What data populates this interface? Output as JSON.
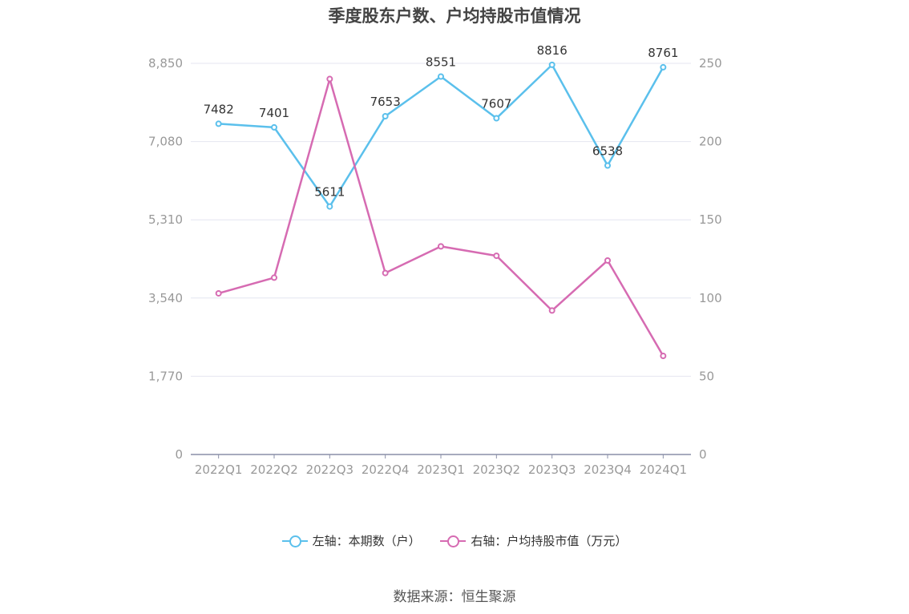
{
  "title": "季度股东户数、户均持股市值情况",
  "source": "数据来源：恒生聚源",
  "colors": {
    "left_series": "#5bc0ec",
    "right_series": "#d66bb2",
    "grid": "#e4e6f0",
    "axis_label": "#999999"
  },
  "legend": [
    {
      "label": "左轴：本期数（户）",
      "color": "#5bc0ec"
    },
    {
      "label": "右轴：户均持股市值（万元）",
      "color": "#d66bb2"
    }
  ],
  "chart_data": {
    "type": "line",
    "categories": [
      "2022Q1",
      "2022Q2",
      "2022Q3",
      "2022Q4",
      "2023Q1",
      "2023Q2",
      "2023Q3",
      "2023Q4",
      "2024Q1"
    ],
    "left_axis": {
      "ticks": [
        "0",
        "1,770",
        "3,540",
        "5,310",
        "7,080",
        "8,850"
      ],
      "ylim": [
        0,
        8850
      ]
    },
    "right_axis": {
      "ticks": [
        "0",
        "50",
        "100",
        "150",
        "200",
        "250"
      ],
      "ylim": [
        0,
        250
      ]
    },
    "grid": true,
    "legend_position": "bottom",
    "series": [
      {
        "name": "左轴：本期数（户）",
        "axis": "left",
        "show_labels": true,
        "values": [
          7482,
          7401,
          5611,
          7653,
          8551,
          7607,
          8816,
          6538,
          8761
        ]
      },
      {
        "name": "右轴：户均持股市值（万元）",
        "axis": "right",
        "show_labels": false,
        "values": [
          103,
          113,
          240,
          116,
          133,
          127,
          92,
          124,
          63
        ]
      }
    ]
  }
}
